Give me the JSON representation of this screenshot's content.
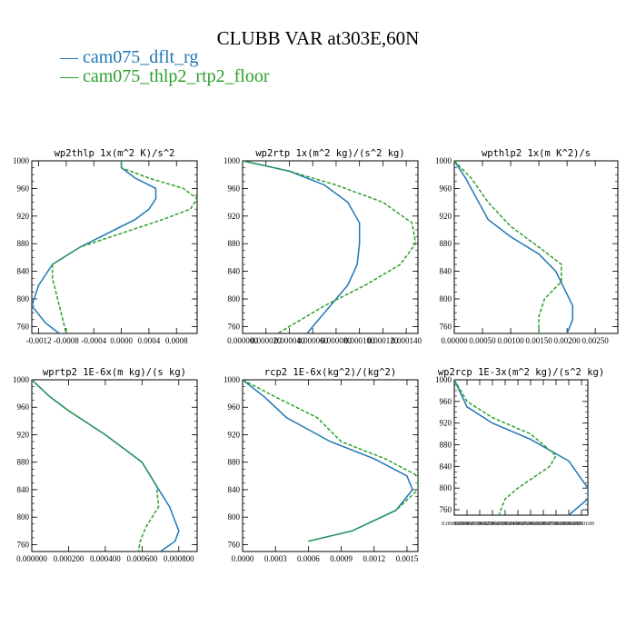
{
  "title": "CLUBB VAR at303E,60N",
  "legend": [
    {
      "label": "cam075_dflt_rg",
      "color": "#1f77b4",
      "dash": "solid"
    },
    {
      "label": "cam075_thlp2_rtp2_floor",
      "color": "#2ca02c",
      "dash": "dashed"
    }
  ],
  "chart_data": [
    {
      "type": "line",
      "title": "wp2thlp   1x(m^2 K)/s^2",
      "xlim": [
        -0.0013,
        0.0011
      ],
      "ylim": [
        1000,
        750
      ],
      "x_ticks": [
        -0.0012,
        -0.0008,
        -0.0004,
        0.0,
        0.0004,
        0.0008
      ],
      "x_tick_labels": [
        "-0.0012",
        "-0.0008",
        "-0.0004",
        "0.0000",
        "0.0004",
        "0.0008"
      ],
      "y_ticks": [
        760,
        800,
        840,
        880,
        920,
        960,
        1000
      ],
      "series": [
        {
          "name": "cam075_dflt_rg",
          "x": [
            0.0,
            0.0,
            0.0002,
            0.0005,
            0.0005,
            0.0004,
            0.0002,
            -0.0002,
            -0.0006,
            -0.001,
            -0.0012,
            -0.0013,
            -0.0011,
            -0.0009
          ],
          "y": [
            1000,
            990,
            975,
            960,
            945,
            930,
            915,
            895,
            875,
            850,
            820,
            790,
            765,
            750
          ]
        },
        {
          "name": "cam075_thlp2_rtp2_floor",
          "x": [
            0.0,
            0.0,
            0.0004,
            0.0009,
            0.0011,
            0.001,
            0.0006,
            0.0,
            -0.0006,
            -0.001,
            -0.001,
            -0.0009,
            -0.0008
          ],
          "y": [
            1000,
            990,
            975,
            960,
            945,
            930,
            915,
            895,
            875,
            850,
            830,
            790,
            750
          ]
        }
      ]
    },
    {
      "type": "line",
      "title": "wp2rtp   1x(m^2 kg)/(s^2 kg)",
      "xlim": [
        0.0,
        0.00015
      ],
      "ylim": [
        1000,
        750
      ],
      "x_ticks": [
        0.0,
        2e-05,
        4e-05,
        6e-05,
        8e-05,
        0.0001,
        0.00012,
        0.00014
      ],
      "x_tick_labels": [
        "0.000000",
        "0.000020",
        "0.000040",
        "0.000060",
        "0.000080",
        "0.000100",
        "0.000120",
        "0.000140"
      ],
      "y_ticks": [
        760,
        800,
        840,
        880,
        920,
        960,
        1000
      ],
      "series": [
        {
          "name": "cam075_dflt_rg",
          "x": [
            0.0,
            4e-05,
            7e-05,
            9e-05,
            0.0001,
            0.0001,
            9.8e-05,
            9e-05,
            7.5e-05,
            5.5e-05
          ],
          "y": [
            1000,
            985,
            965,
            940,
            910,
            880,
            850,
            820,
            790,
            750
          ]
        },
        {
          "name": "cam075_thlp2_rtp2_floor",
          "x": [
            0.0,
            4e-05,
            8e-05,
            0.00012,
            0.000145,
            0.000148,
            0.000135,
            0.000105,
            7e-05,
            4.5e-05,
            3e-05
          ],
          "y": [
            1000,
            985,
            965,
            940,
            910,
            880,
            850,
            820,
            790,
            765,
            750
          ]
        }
      ]
    },
    {
      "type": "line",
      "title": "wpthlp2   1x(m K^2)/s",
      "xlim": [
        0.0,
        0.0029
      ],
      "ylim": [
        1000,
        750
      ],
      "x_ticks": [
        0.0,
        0.0005,
        0.001,
        0.0015,
        0.002,
        0.0025
      ],
      "x_tick_labels": [
        "0.00000",
        "0.00050",
        "0.00100",
        "0.00150",
        "0.00200",
        "0.00250"
      ],
      "y_ticks": [
        760,
        800,
        840,
        880,
        920,
        960,
        1000
      ],
      "series": [
        {
          "name": "cam075_dflt_rg",
          "x": [
            0.0,
            0.0002,
            0.0004,
            0.0006,
            0.001,
            0.0015,
            0.0018,
            0.0021,
            0.0021,
            0.002
          ],
          "y": [
            1000,
            975,
            945,
            915,
            890,
            865,
            840,
            790,
            770,
            750
          ]
        },
        {
          "name": "cam075_thlp2_rtp2_floor",
          "x": [
            0.0,
            0.0003,
            0.0006,
            0.001,
            0.0015,
            0.0019,
            0.0019,
            0.0016,
            0.0015,
            0.0015
          ],
          "y": [
            1000,
            975,
            940,
            905,
            875,
            850,
            825,
            800,
            775,
            750
          ]
        }
      ]
    },
    {
      "type": "line",
      "title": "wprtp2   1E-6x(m kg)/(s kg)",
      "xlim": [
        0.0,
        0.0009
      ],
      "ylim": [
        1000,
        750
      ],
      "x_ticks": [
        0.0,
        0.0002,
        0.0004,
        0.0006,
        0.0008
      ],
      "x_tick_labels": [
        "0.000000",
        "0.000200",
        "0.000400",
        "0.000600",
        "0.000800"
      ],
      "y_ticks": [
        760,
        800,
        840,
        880,
        920,
        960,
        1000
      ],
      "series": [
        {
          "name": "cam075_dflt_rg",
          "x": [
            0.0,
            0.0001,
            0.0002,
            0.0004,
            0.0006,
            0.00068,
            0.00075,
            0.0008,
            0.00078,
            0.0007
          ],
          "y": [
            1000,
            975,
            955,
            920,
            880,
            845,
            815,
            780,
            765,
            750
          ]
        },
        {
          "name": "cam075_thlp2_rtp2_floor",
          "x": [
            0.0,
            0.0001,
            0.0002,
            0.0004,
            0.0006,
            0.00068,
            0.00069,
            0.00062,
            0.00059,
            0.00058
          ],
          "y": [
            1000,
            975,
            955,
            920,
            880,
            845,
            815,
            785,
            765,
            750
          ]
        }
      ]
    },
    {
      "type": "line",
      "title": "rcp2   1E-6x(kg^2)/(kg^2)",
      "xlim": [
        0.0,
        0.0016
      ],
      "ylim": [
        1000,
        750
      ],
      "x_ticks": [
        0.0,
        0.0003,
        0.0006,
        0.0009,
        0.0012,
        0.0015
      ],
      "x_tick_labels": [
        "0.0000",
        "0.0003",
        "0.0006",
        "0.0009",
        "0.0012",
        "0.0015"
      ],
      "y_ticks": [
        760,
        800,
        840,
        880,
        920,
        960,
        1000
      ],
      "series": [
        {
          "name": "cam075_dflt_rg",
          "x": [
            0.0,
            0.0002,
            0.0004,
            0.0008,
            0.0012,
            0.0015,
            0.00155,
            0.0014,
            0.001,
            0.0006
          ],
          "y": [
            1000,
            975,
            945,
            910,
            885,
            860,
            840,
            810,
            780,
            765
          ]
        },
        {
          "name": "cam075_thlp2_rtp2_floor",
          "x": [
            0.0,
            0.0003,
            0.00068,
            0.0009,
            0.0013,
            0.0016,
            0.0016,
            0.0014,
            0.001,
            0.0006
          ],
          "y": [
            1000,
            975,
            945,
            910,
            885,
            860,
            840,
            810,
            780,
            765
          ]
        }
      ]
    },
    {
      "type": "line",
      "title": "wp2rcp   1E-3x(m^2 kg)/(s^2 kg)",
      "xlim": [
        0.0,
        1.05e-05
      ],
      "ylim": [
        1000,
        750
      ],
      "x_ticks": [
        0.0,
        1e-06,
        2e-06,
        3e-06,
        4e-06,
        5e-06,
        6e-06,
        7e-06,
        8e-06,
        9e-06,
        1e-05
      ],
      "x_tick_labels": [
        "0.0000000",
        "0.0000010",
        "0.0000020",
        "0.0000030",
        "0.0000040",
        "0.0000050",
        "0.0000060",
        "0.0000070",
        "0.0000080",
        "0.0000090",
        "0.0000100"
      ],
      "y_ticks": [
        760,
        800,
        840,
        880,
        920,
        960,
        1000
      ],
      "series": [
        {
          "name": "cam075_dflt_rg",
          "x": [
            0.0,
            1e-06,
            3e-06,
            6e-06,
            9e-06,
            1.05e-05,
            1.05e-05,
            9e-06
          ],
          "y": [
            1000,
            950,
            920,
            890,
            850,
            800,
            780,
            750
          ]
        },
        {
          "name": "cam075_thlp2_rtp2_floor",
          "x": [
            0.0,
            1e-06,
            3e-06,
            6e-06,
            8e-06,
            7.5e-06,
            5e-06,
            4e-06,
            3.5e-06
          ],
          "y": [
            1000,
            960,
            930,
            900,
            860,
            840,
            800,
            780,
            750
          ]
        }
      ]
    }
  ]
}
